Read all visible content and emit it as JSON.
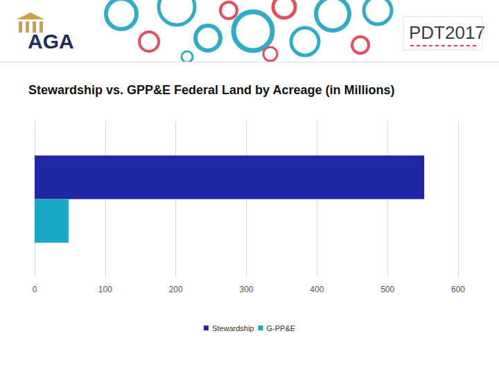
{
  "header": {
    "logo": "AGA",
    "event": "PDT2017"
  },
  "chart_data": {
    "type": "bar",
    "orientation": "horizontal",
    "title": "Stewardship vs. GPP&E Federal Land by Acreage (in Millions)",
    "categories": [
      null
    ],
    "series": [
      {
        "name": "Stewardship",
        "color": "#2127a3",
        "values": [
          552
        ]
      },
      {
        "name": "G-PP&E",
        "color": "#18a7c5",
        "values": [
          48
        ]
      }
    ],
    "xlim": [
      0,
      600
    ],
    "xticks": [
      0,
      100,
      200,
      300,
      400,
      500,
      600
    ],
    "grid": true,
    "legend": "bottom",
    "tick_labels": "x"
  }
}
